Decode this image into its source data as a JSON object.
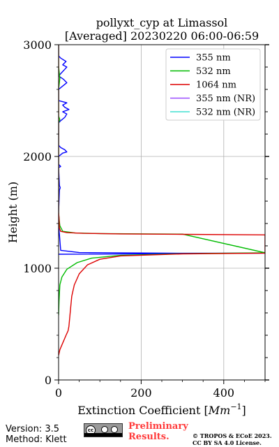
{
  "chart_data": {
    "type": "line",
    "title_line1": "pollyxt_cyp at Limassol",
    "title_line2": "[Averaged] 20230220 06:00-06:59",
    "xlabel": "Extinction Coefficient [",
    "xlabel_unit": "Mm",
    "xlabel_exp": "−1",
    "xlabel_end": "]",
    "ylabel": "Height (m)",
    "xlim": [
      0,
      500
    ],
    "ylim": [
      0,
      3000
    ],
    "x_ticks": [
      0,
      200,
      400
    ],
    "x_tick_labels": [
      "0",
      "200",
      "400"
    ],
    "y_ticks": [
      0,
      1000,
      2000,
      3000
    ],
    "y_tick_labels": [
      "0",
      "1000",
      "2000",
      "3000"
    ],
    "grid": true,
    "legend_position": "top-right",
    "series": [
      {
        "name": "355 nm",
        "color": "#0000ff",
        "points": [
          [
            0,
            1125
          ],
          [
            100,
            1126
          ],
          [
            300,
            1132
          ],
          [
            500,
            1135
          ],
          [
            300,
            1134
          ],
          [
            50,
            1140
          ],
          [
            5,
            1160
          ],
          [
            2,
            1300
          ],
          [
            1,
            1340
          ],
          [
            0,
            1500
          ],
          [
            2,
            1700
          ],
          [
            4,
            1720
          ],
          [
            2,
            1740
          ],
          [
            0,
            1900
          ],
          [
            5,
            1910
          ],
          [
            0,
            1930
          ],
          [
            0,
            2000
          ],
          [
            10,
            2030
          ],
          [
            20,
            2040
          ],
          [
            15,
            2060
          ],
          [
            5,
            2080
          ],
          [
            0,
            2100
          ],
          [
            0,
            2150
          ],
          [
            0,
            2300
          ],
          [
            5,
            2320
          ],
          [
            15,
            2350
          ],
          [
            20,
            2380
          ],
          [
            10,
            2400
          ],
          [
            25,
            2420
          ],
          [
            15,
            2440
          ],
          [
            10,
            2460
          ],
          [
            20,
            2480
          ],
          [
            0,
            2500
          ],
          [
            0,
            2600
          ],
          [
            10,
            2630
          ],
          [
            20,
            2660
          ],
          [
            12,
            2690
          ],
          [
            0,
            2720
          ],
          [
            10,
            2760
          ],
          [
            15,
            2780
          ],
          [
            20,
            2800
          ],
          [
            10,
            2820
          ],
          [
            18,
            2850
          ],
          [
            5,
            2880
          ],
          [
            0,
            2900
          ],
          [
            0,
            3000
          ]
        ]
      },
      {
        "name": "532 nm",
        "color": "#00bb00",
        "points": [
          [
            0,
            580
          ],
          [
            1,
            700
          ],
          [
            3,
            850
          ],
          [
            8,
            920
          ],
          [
            20,
            990
          ],
          [
            45,
            1050
          ],
          [
            80,
            1090
          ],
          [
            150,
            1115
          ],
          [
            300,
            1130
          ],
          [
            500,
            1138
          ],
          [
            300,
            1305
          ],
          [
            100,
            1310
          ],
          [
            40,
            1315
          ],
          [
            10,
            1330
          ],
          [
            3,
            1380
          ],
          [
            1,
            1450
          ],
          [
            0,
            1500
          ],
          [
            0,
            2300
          ],
          [
            3,
            2330
          ],
          [
            0,
            2360
          ],
          [
            0,
            2600
          ],
          [
            3,
            2700
          ],
          [
            0,
            2800
          ],
          [
            0,
            3000
          ]
        ]
      },
      {
        "name": "1064 nm",
        "color": "#dd0000",
        "points": [
          [
            0,
            220
          ],
          [
            3,
            270
          ],
          [
            10,
            330
          ],
          [
            18,
            400
          ],
          [
            23,
            440
          ],
          [
            25,
            480
          ],
          [
            27,
            560
          ],
          [
            29,
            640
          ],
          [
            32,
            750
          ],
          [
            38,
            850
          ],
          [
            50,
            950
          ],
          [
            70,
            1030
          ],
          [
            100,
            1080
          ],
          [
            150,
            1110
          ],
          [
            300,
            1128
          ],
          [
            500,
            1135
          ],
          [
            500,
            1298
          ],
          [
            300,
            1303
          ],
          [
            150,
            1307
          ],
          [
            60,
            1312
          ],
          [
            20,
            1318
          ],
          [
            5,
            1330
          ],
          [
            2,
            1360
          ],
          [
            1,
            1450
          ],
          [
            0,
            1500
          ],
          [
            0,
            3000
          ]
        ]
      },
      {
        "name": "355 nm (NR)",
        "color": "#9b4dff",
        "points": []
      },
      {
        "name": "532 nm (NR)",
        "color": "#40e0d0",
        "points": []
      }
    ]
  },
  "footer": {
    "version": "Version: 3.5",
    "method": "Method: Klett",
    "preliminary_line1": "Preliminary",
    "preliminary_line2": "Results.",
    "copyright_line1": "© TROPOS & ECoE 2023.",
    "copyright_line2": "CC BY SA 4.0 License."
  },
  "icons": {
    "license_badge": "cc-by-sa-icon"
  }
}
